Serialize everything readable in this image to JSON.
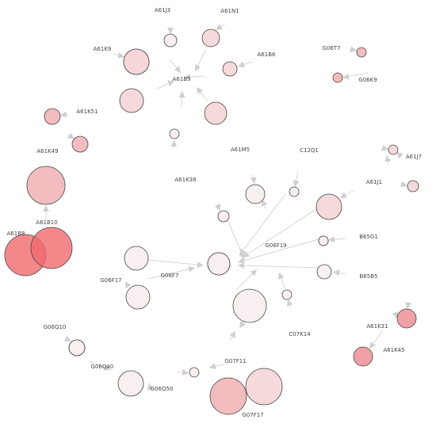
{
  "palette": {
    "lightest": "#f8eeef",
    "light": "#f6d7d9",
    "medium": "#f2b8bc",
    "strong": "#ee9ca1",
    "deep": "#f06a6e",
    "edge": "#d6d6d6",
    "arrow": "#cfcfcf",
    "text": "#444444"
  },
  "nodes": [
    {
      "id": "n-a61b5",
      "name": "A61B5",
      "tone": "light"
    },
    {
      "id": "n-a61j3",
      "name": "A61J3",
      "tone": "lightest"
    },
    {
      "id": "n-a61n1",
      "name": "A61N1",
      "tone": "light"
    },
    {
      "id": "n-a61k9",
      "name": "A61K9",
      "tone": "light"
    },
    {
      "id": "n-a61b6",
      "name": "A61B6",
      "tone": "light"
    },
    {
      "id": "n-a61k51-ring",
      "name": "",
      "tone": "light"
    },
    {
      "id": "n-a61b5-lower",
      "name": "",
      "tone": "light"
    },
    {
      "id": "n-a61k38-top",
      "name": "",
      "tone": "lightest"
    },
    {
      "id": "n-a61k51",
      "name": "A61K51",
      "tone": "medium"
    },
    {
      "id": "n-a61k49",
      "name": "A61K49",
      "tone": "medium"
    },
    {
      "id": "n-g06t7",
      "name": "G06T7",
      "tone": "medium"
    },
    {
      "id": "n-g06k9",
      "name": "G06K9",
      "tone": "medium"
    },
    {
      "id": "n-a61j7",
      "name": "A61J7",
      "tone": "light"
    },
    {
      "id": "n-a61j1",
      "name": "A61J1",
      "tone": "light"
    },
    {
      "id": "n-a61j7b",
      "name": "",
      "tone": "light"
    },
    {
      "id": "n-a61b10",
      "name": "A61B10",
      "tone": "medium"
    },
    {
      "id": "n-a61b8",
      "name": "A61B8",
      "tone": "deep"
    },
    {
      "id": "n-a61b10b",
      "name": "",
      "tone": "deep"
    },
    {
      "id": "n-a61m5",
      "name": "A61M5",
      "tone": "lightest"
    },
    {
      "id": "n-c12q1",
      "name": "C12Q1",
      "tone": "lightest"
    },
    {
      "id": "n-a61j1b",
      "name": "",
      "tone": "lightest"
    },
    {
      "id": "n-a61k38",
      "name": "A61K38",
      "tone": "lightest"
    },
    {
      "id": "n-g06f19",
      "name": "G06F19",
      "tone": "lightest"
    },
    {
      "id": "n-b65g1",
      "name": "B65G1",
      "tone": "lightest"
    },
    {
      "id": "n-b65b5",
      "name": "B65B5",
      "tone": "lightest"
    },
    {
      "id": "n-g06f7",
      "name": "G06F7",
      "tone": "lightest"
    },
    {
      "id": "n-g06f17a",
      "name": "G06F17",
      "tone": "lightest"
    },
    {
      "id": "n-g06f17b",
      "name": "",
      "tone": "lightest"
    },
    {
      "id": "n-big-center",
      "name": "",
      "tone": "lightest"
    },
    {
      "id": "n-c07k14",
      "name": "C07K14",
      "tone": "lightest"
    },
    {
      "id": "n-a61k31",
      "name": "A61K31",
      "tone": "strong"
    },
    {
      "id": "n-a61k45",
      "name": "A61K45",
      "tone": "strong"
    },
    {
      "id": "n-g06q10",
      "name": "G06Q10",
      "tone": "lightest"
    },
    {
      "id": "n-g06q40",
      "name": "G06Q40",
      "tone": "lightest"
    },
    {
      "id": "n-g06q50",
      "name": "G06Q50",
      "tone": "lightest"
    },
    {
      "id": "n-g07f11",
      "name": "G07F11",
      "tone": "lightest"
    },
    {
      "id": "n-g07f17",
      "name": "G07F17",
      "tone": "medium"
    },
    {
      "id": "n-g07f17b",
      "name": "",
      "tone": "light"
    }
  ],
  "labels": [
    {
      "id": "l1",
      "text": "A61J3"
    },
    {
      "id": "l2",
      "text": "A61N1"
    },
    {
      "id": "l3",
      "text": "A61K9"
    },
    {
      "id": "l4",
      "text": "A61B6"
    },
    {
      "id": "l5",
      "text": "A61B5"
    },
    {
      "id": "l6",
      "text": "G06T7"
    },
    {
      "id": "l7",
      "text": "G06K9"
    },
    {
      "id": "l8",
      "text": "A61K51"
    },
    {
      "id": "l9",
      "text": "A61K49"
    },
    {
      "id": "l10",
      "text": "A61M5"
    },
    {
      "id": "l11",
      "text": "C12Q1"
    },
    {
      "id": "l12",
      "text": "A61J7"
    },
    {
      "id": "l13",
      "text": "A61J1"
    },
    {
      "id": "l14",
      "text": "A61K38"
    },
    {
      "id": "l15",
      "text": "A61B10"
    },
    {
      "id": "l16",
      "text": "A61B8"
    },
    {
      "id": "l17",
      "text": "G06F19"
    },
    {
      "id": "l18",
      "text": "B65G1"
    },
    {
      "id": "l19",
      "text": "B65B5"
    },
    {
      "id": "l20",
      "text": "G06F17"
    },
    {
      "id": "l21",
      "text": "G06F7"
    },
    {
      "id": "l22",
      "text": "C07K14"
    },
    {
      "id": "l23",
      "text": "A61K31"
    },
    {
      "id": "l24",
      "text": "A61K45"
    },
    {
      "id": "l25",
      "text": "G06Q10"
    },
    {
      "id": "l26",
      "text": "G06Q40"
    },
    {
      "id": "l27",
      "text": "G06Q50"
    },
    {
      "id": "l28",
      "text": "G07F11"
    },
    {
      "id": "l29",
      "text": "G07F17"
    }
  ]
}
